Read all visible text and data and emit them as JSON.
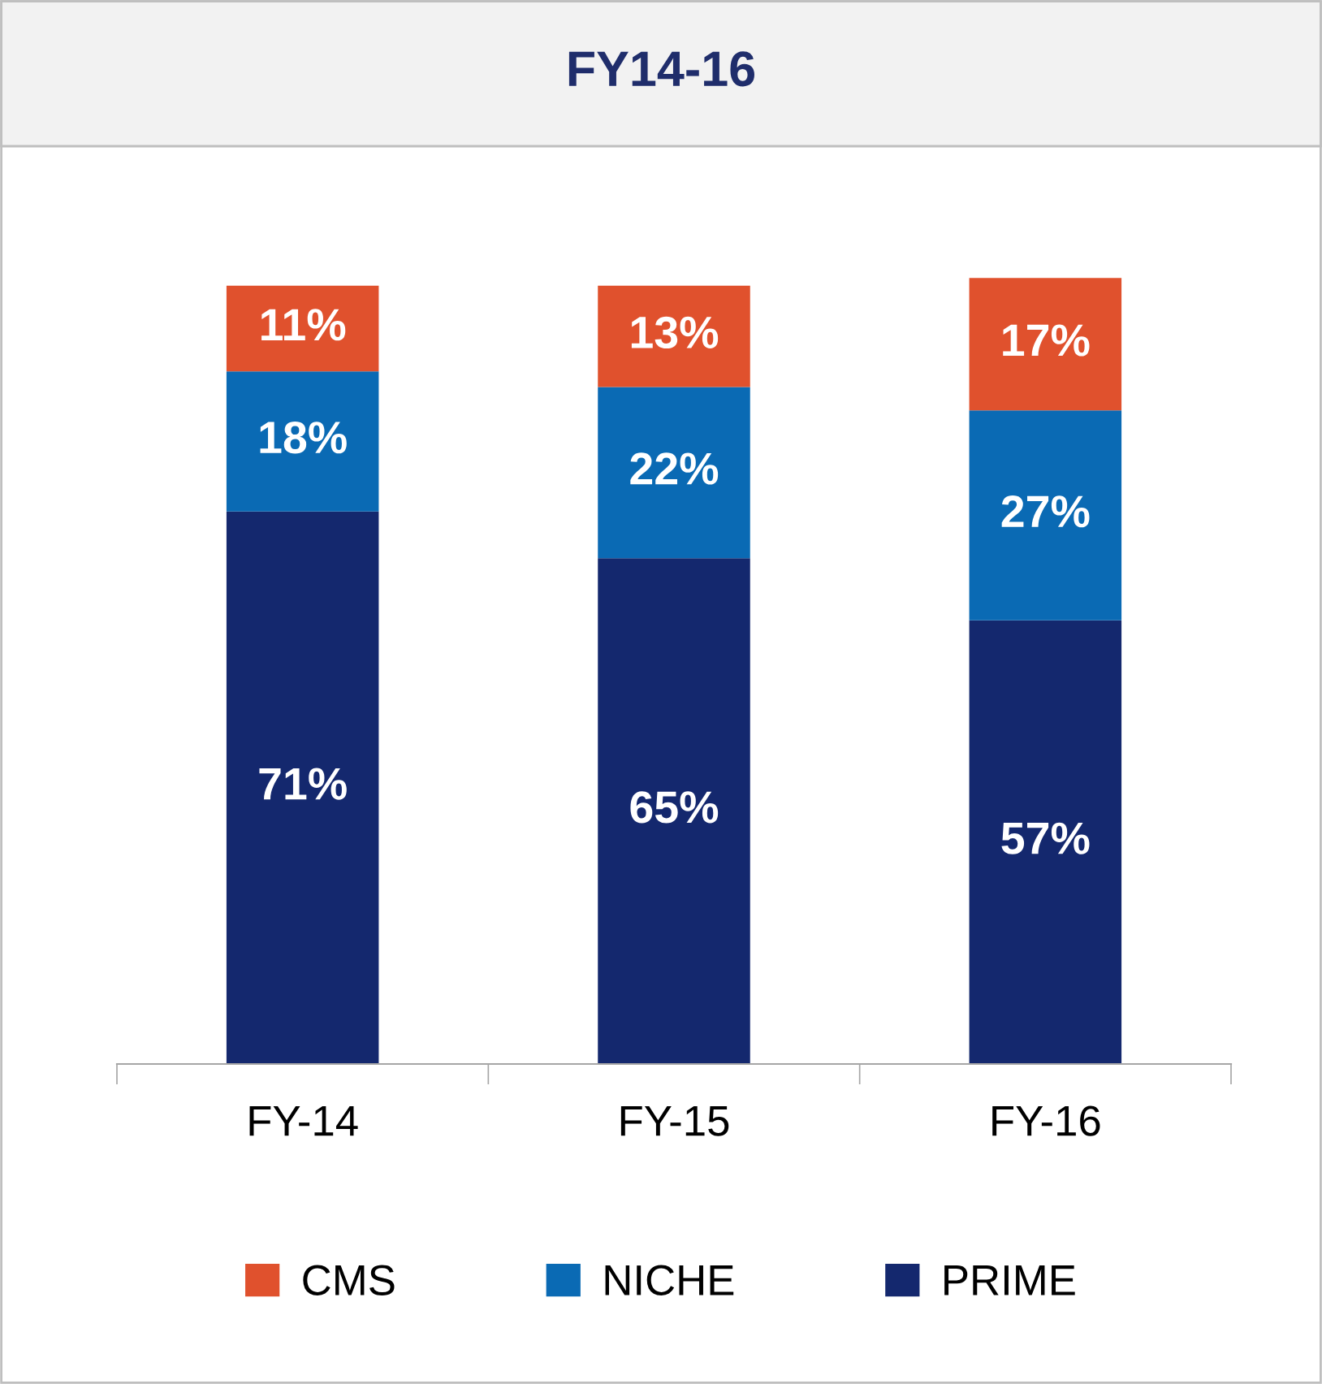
{
  "chart_data": {
    "type": "bar",
    "title": "FY14-16",
    "stacked": true,
    "categories": [
      "FY-14",
      "FY-15",
      "FY-16"
    ],
    "series": [
      {
        "name": "PRIME",
        "color": "#14286e",
        "values": [
          71,
          65,
          57
        ],
        "value_labels": [
          "71%",
          "65%",
          "57%"
        ]
      },
      {
        "name": "NICHE",
        "color": "#0a6ab4",
        "values": [
          18,
          22,
          27
        ],
        "value_labels": [
          "18%",
          "22%",
          "27%"
        ]
      },
      {
        "name": "CMS",
        "color": "#e0512d",
        "values": [
          11,
          13,
          17
        ],
        "value_labels": [
          "11%",
          "13%",
          "17%"
        ]
      }
    ],
    "legend": "bottom",
    "grid": false
  }
}
